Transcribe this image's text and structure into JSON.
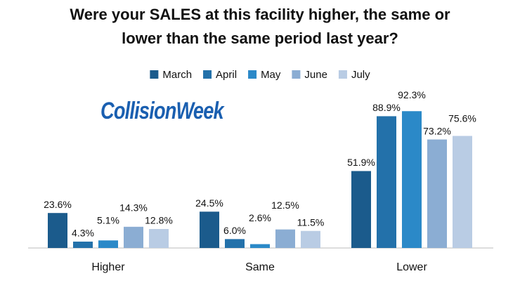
{
  "chart_data": {
    "type": "bar",
    "title": [
      "Were your SALES at this facility higher, the same or",
      "lower than the same period last year?"
    ],
    "logo": "CollisionWeek",
    "categories": [
      "Higher",
      "Same",
      "Lower"
    ],
    "series": [
      {
        "name": "March",
        "color": "#1b5b8c",
        "values": [
          23.6,
          24.5,
          51.9
        ],
        "value_labels": [
          "23.6%",
          "24.5%",
          "51.9%"
        ]
      },
      {
        "name": "April",
        "color": "#2371aa",
        "values": [
          4.3,
          6.0,
          88.9
        ],
        "value_labels": [
          "4.3%",
          "6.0%",
          "88.9%"
        ]
      },
      {
        "name": "May",
        "color": "#2b89c8",
        "values": [
          5.1,
          2.6,
          92.3
        ],
        "value_labels": [
          "5.1%",
          "2.6%",
          "92.3%"
        ]
      },
      {
        "name": "June",
        "color": "#8badd3",
        "values": [
          14.3,
          12.5,
          73.2
        ],
        "value_labels": [
          "14.3%",
          "12.5%",
          "73.2%"
        ]
      },
      {
        "name": "July",
        "color": "#b9cce4",
        "values": [
          12.8,
          11.5,
          75.6
        ],
        "value_labels": [
          "12.8%",
          "11.5%",
          "75.6%"
        ]
      }
    ]
  }
}
